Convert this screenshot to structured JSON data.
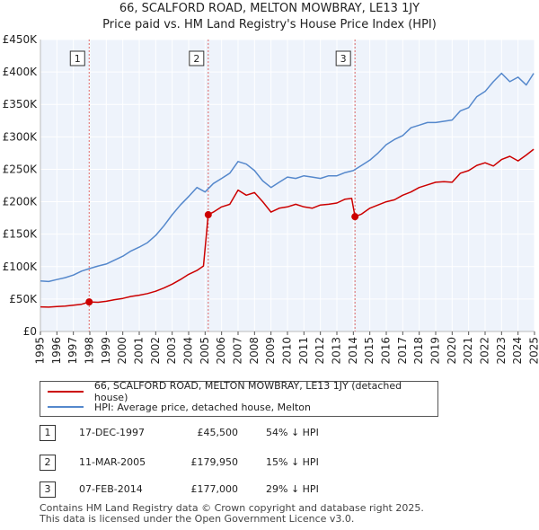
{
  "chart_data": {
    "type": "line",
    "title": "66, SCALFORD ROAD, MELTON MOWBRAY, LE13 1JY",
    "subtitle": "Price paid vs. HM Land Registry's House Price Index (HPI)",
    "xlabel": "",
    "ylabel": "",
    "xlim": [
      1995,
      2025
    ],
    "ylim": [
      0,
      450000
    ],
    "y_ticks": [
      0,
      50000,
      100000,
      150000,
      200000,
      250000,
      300000,
      350000,
      400000,
      450000
    ],
    "y_tick_labels": [
      "£0",
      "£50K",
      "£100K",
      "£150K",
      "£200K",
      "£250K",
      "£300K",
      "£350K",
      "£400K",
      "£450K"
    ],
    "x_ticks": [
      1995,
      1996,
      1997,
      1998,
      1999,
      2000,
      2001,
      2002,
      2003,
      2004,
      2005,
      2006,
      2007,
      2008,
      2009,
      2010,
      2011,
      2012,
      2013,
      2014,
      2015,
      2016,
      2017,
      2018,
      2019,
      2020,
      2021,
      2022,
      2023,
      2024,
      2025
    ],
    "x_tick_labels": [
      "1995",
      "1996",
      "1997",
      "1998",
      "1999",
      "2000",
      "2001",
      "2002",
      "2003",
      "2004",
      "2005",
      "2006",
      "2007",
      "2008",
      "2009",
      "2010",
      "2011",
      "2012",
      "2013",
      "2014",
      "2015",
      "2016",
      "2017",
      "2018",
      "2019",
      "2020",
      "2021",
      "2022",
      "2023",
      "2024",
      "2025"
    ],
    "grid": true,
    "series": [
      {
        "name": "66, SCALFORD ROAD, MELTON MOWBRAY, LE13 1JY (detached house)",
        "color": "#cc0000",
        "x": [
          1995.0,
          1995.5,
          1996.0,
          1996.5,
          1997.0,
          1997.5,
          1997.96,
          1998.5,
          1999.0,
          1999.5,
          2000.0,
          2000.5,
          2001.0,
          2001.5,
          2002.0,
          2002.5,
          2003.0,
          2003.5,
          2004.0,
          2004.5,
          2004.9,
          2005.19,
          2005.5,
          2006.0,
          2006.5,
          2007.0,
          2007.5,
          2008.0,
          2008.5,
          2009.0,
          2009.5,
          2010.0,
          2010.5,
          2011.0,
          2011.5,
          2012.0,
          2012.5,
          2013.0,
          2013.5,
          2013.9,
          2014.1,
          2014.5,
          2015.0,
          2015.5,
          2016.0,
          2016.5,
          2017.0,
          2017.5,
          2018.0,
          2018.5,
          2019.0,
          2019.5,
          2020.0,
          2020.5,
          2021.0,
          2021.5,
          2022.0,
          2022.5,
          2023.0,
          2023.5,
          2024.0,
          2024.5,
          2024.95
        ],
        "values": [
          38000,
          37500,
          38500,
          39000,
          40500,
          42000,
          45500,
          45000,
          46500,
          49000,
          51000,
          54000,
          56000,
          58500,
          62000,
          67000,
          73000,
          80000,
          88000,
          94000,
          101000,
          179950,
          184000,
          192000,
          196000,
          218000,
          210000,
          214000,
          200000,
          184000,
          190000,
          192000,
          196000,
          192000,
          190000,
          195000,
          196000,
          198000,
          204000,
          205000,
          177000,
          181000,
          190000,
          195000,
          200000,
          203000,
          210000,
          215000,
          222000,
          226000,
          230000,
          231000,
          230000,
          244000,
          248000,
          256000,
          260000,
          255000,
          265000,
          270000,
          263000,
          272000,
          281000
        ]
      },
      {
        "name": "HPI: Average price, detached house, Melton",
        "color": "#5588cc",
        "x": [
          1995.0,
          1995.5,
          1996.0,
          1996.5,
          1997.0,
          1997.5,
          1998.0,
          1998.5,
          1999.0,
          1999.5,
          2000.0,
          2000.5,
          2001.0,
          2001.5,
          2002.0,
          2002.5,
          2003.0,
          2003.5,
          2004.0,
          2004.5,
          2005.0,
          2005.5,
          2006.0,
          2006.5,
          2007.0,
          2007.5,
          2008.0,
          2008.5,
          2009.0,
          2009.5,
          2010.0,
          2010.5,
          2011.0,
          2011.5,
          2012.0,
          2012.5,
          2013.0,
          2013.5,
          2014.0,
          2014.5,
          2015.0,
          2015.5,
          2016.0,
          2016.5,
          2017.0,
          2017.5,
          2018.0,
          2018.5,
          2019.0,
          2019.5,
          2020.0,
          2020.5,
          2021.0,
          2021.5,
          2022.0,
          2022.5,
          2023.0,
          2023.5,
          2024.0,
          2024.5,
          2024.95
        ],
        "values": [
          78000,
          77000,
          80000,
          83000,
          87000,
          93000,
          97000,
          101000,
          104000,
          110000,
          116000,
          124000,
          130000,
          137000,
          148000,
          163000,
          180000,
          195000,
          208000,
          222000,
          215000,
          228000,
          236000,
          244000,
          262000,
          258000,
          248000,
          232000,
          222000,
          230000,
          238000,
          236000,
          240000,
          238000,
          236000,
          240000,
          240000,
          245000,
          248000,
          256000,
          264000,
          275000,
          288000,
          296000,
          302000,
          314000,
          318000,
          322000,
          322000,
          324000,
          326000,
          340000,
          345000,
          362000,
          370000,
          385000,
          398000,
          385000,
          392000,
          380000,
          398000
        ]
      }
    ],
    "annotations": [
      {
        "label": "1",
        "x": 1997.96
      },
      {
        "label": "2",
        "x": 2005.19
      },
      {
        "label": "3",
        "x": 2014.1
      }
    ],
    "sale_points": [
      {
        "label": "1",
        "x": 1997.96,
        "y": 45500
      },
      {
        "label": "2",
        "x": 2005.19,
        "y": 179950
      },
      {
        "label": "3",
        "x": 2014.1,
        "y": 177000
      }
    ]
  },
  "legend": {
    "entries": [
      {
        "label": "66, SCALFORD ROAD, MELTON MOWBRAY, LE13 1JY (detached house)",
        "color": "#cc0000"
      },
      {
        "label": "HPI: Average price, detached house, Melton",
        "color": "#5588cc"
      }
    ]
  },
  "sales": [
    {
      "num": "1",
      "date": "17-DEC-1997",
      "price": "£45,500",
      "hpi": "54% ↓ HPI"
    },
    {
      "num": "2",
      "date": "11-MAR-2005",
      "price": "£179,950",
      "hpi": "15% ↓ HPI"
    },
    {
      "num": "3",
      "date": "07-FEB-2014",
      "price": "£177,000",
      "hpi": "29% ↓ HPI"
    }
  ],
  "footer": {
    "line1": "Contains HM Land Registry data © Crown copyright and database right 2025.",
    "line2": "This data is licensed under the Open Government Licence v3.0."
  }
}
